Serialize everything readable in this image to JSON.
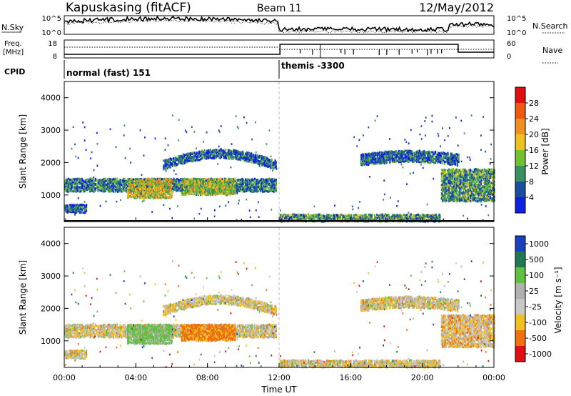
{
  "header": {
    "station": "Kapuskasing (fitACF)",
    "beam": "Beam 11",
    "date": "12/May/2012"
  },
  "top_panels": {
    "nsky_label": "N.Sky",
    "nsky_ticks": [
      "10^5",
      "10^0"
    ],
    "nsearch_label": "N.Search",
    "nsearch_ticks": [
      "10^5",
      "10^0"
    ],
    "freq_label": "Freq.",
    "freq_unit": "[MHz]",
    "freq_ticks": [
      "18",
      "8"
    ],
    "nave_label": "Nave",
    "nave_ticks": [
      "60",
      "0"
    ],
    "cpid_label": "CPID",
    "cpid_segments": [
      {
        "label": "normal (fast) 151",
        "start_hour": 0
      },
      {
        "label": "themis -3300",
        "start_hour": 12
      }
    ]
  },
  "x_axis": {
    "label": "Time UT",
    "ticks": [
      "00:00",
      "04:00",
      "08:00",
      "12:00",
      "16:00",
      "20:00",
      "00:00"
    ]
  },
  "panels": [
    {
      "id": "power",
      "ylabel": "Slant Range [km]",
      "yticks": [
        "4000",
        "3000",
        "2000",
        "1000"
      ],
      "colorbar_label": "Power [dB]",
      "colorbar_ticks": [
        "28",
        "24",
        "20",
        "16",
        "12",
        "8",
        "4"
      ],
      "colors": [
        "#e01010",
        "#f05a10",
        "#f09020",
        "#f0c020",
        "#70c030",
        "#3a9060",
        "#1a4fa0",
        "#1020e0"
      ]
    },
    {
      "id": "velocity",
      "ylabel": "Slant Range [km]",
      "yticks": [
        "4000",
        "3000",
        "2000",
        "1000"
      ],
      "colorbar_label": "Velocity [m s⁻¹]",
      "colorbar_ticks": [
        "1000",
        "500",
        "100",
        "25",
        "-25",
        "-100",
        "-500",
        "-1000"
      ],
      "colors": [
        "#1a3fc0",
        "#1f7a4f",
        "#60c040",
        "#b0b0b0",
        "#c8c8c8",
        "#f0c020",
        "#f07010",
        "#e01010"
      ]
    }
  ],
  "chart_data": [
    {
      "type": "heatmap",
      "title": "Power",
      "x_range_hours": [
        0,
        24
      ],
      "ylim": [
        180,
        4500
      ],
      "colorbar": {
        "label": "Power [dB]",
        "range": [
          0,
          30
        ],
        "ticks": [
          28,
          24,
          20,
          16,
          12,
          8,
          4
        ]
      },
      "echo_regions": [
        {
          "start_hour": 0.0,
          "end_hour": 1.2,
          "range_km": [
            450,
            700
          ],
          "power_db": 6
        },
        {
          "start_hour": 0.0,
          "end_hour": 11.8,
          "range_km": [
            1100,
            1500
          ],
          "power_db": 8
        },
        {
          "start_hour": 3.5,
          "end_hour": 6.0,
          "range_km": [
            900,
            1500
          ],
          "power_db": 16
        },
        {
          "start_hour": 6.5,
          "end_hour": 9.5,
          "range_km": [
            1000,
            1500
          ],
          "power_db": 14
        },
        {
          "start_hour": 5.5,
          "end_hour": 11.8,
          "range_km": [
            1600,
            2600
          ],
          "power_db": 6
        },
        {
          "start_hour": 12.0,
          "end_hour": 21.0,
          "range_km": [
            180,
            400
          ],
          "power_db": 10
        },
        {
          "start_hour": 16.5,
          "end_hour": 22.0,
          "range_km": [
            1800,
            2500
          ],
          "power_db": 6
        },
        {
          "start_hour": 21.0,
          "end_hour": 24.0,
          "range_km": [
            800,
            1800
          ],
          "power_db": 10
        }
      ]
    },
    {
      "type": "heatmap",
      "title": "Velocity",
      "x_range_hours": [
        0,
        24
      ],
      "ylim": [
        180,
        4500
      ],
      "colorbar": {
        "label": "Velocity [m s⁻¹]",
        "levels": [
          1000,
          500,
          100,
          25,
          -25,
          -100,
          -500,
          -1000
        ]
      },
      "echo_regions": [
        {
          "start_hour": 0.0,
          "end_hour": 1.2,
          "range_km": [
            450,
            700
          ],
          "velocity_ms": 0
        },
        {
          "start_hour": 0.0,
          "end_hour": 11.8,
          "range_km": [
            1100,
            1500
          ],
          "velocity_ms": 0
        },
        {
          "start_hour": 3.5,
          "end_hour": 6.0,
          "range_km": [
            900,
            1500
          ],
          "velocity_ms": 150
        },
        {
          "start_hour": 6.5,
          "end_hour": 9.5,
          "range_km": [
            1000,
            1500
          ],
          "velocity_ms": -150
        },
        {
          "start_hour": 5.5,
          "end_hour": 11.8,
          "range_km": [
            1600,
            2600
          ],
          "velocity_ms": 0
        },
        {
          "start_hour": 12.0,
          "end_hour": 21.0,
          "range_km": [
            180,
            400
          ],
          "velocity_ms": 0
        },
        {
          "start_hour": 16.5,
          "end_hour": 22.0,
          "range_km": [
            1800,
            2500
          ],
          "velocity_ms": 0
        },
        {
          "start_hour": 21.0,
          "end_hour": 24.0,
          "range_km": [
            800,
            1800
          ],
          "velocity_ms": -30
        }
      ]
    }
  ]
}
